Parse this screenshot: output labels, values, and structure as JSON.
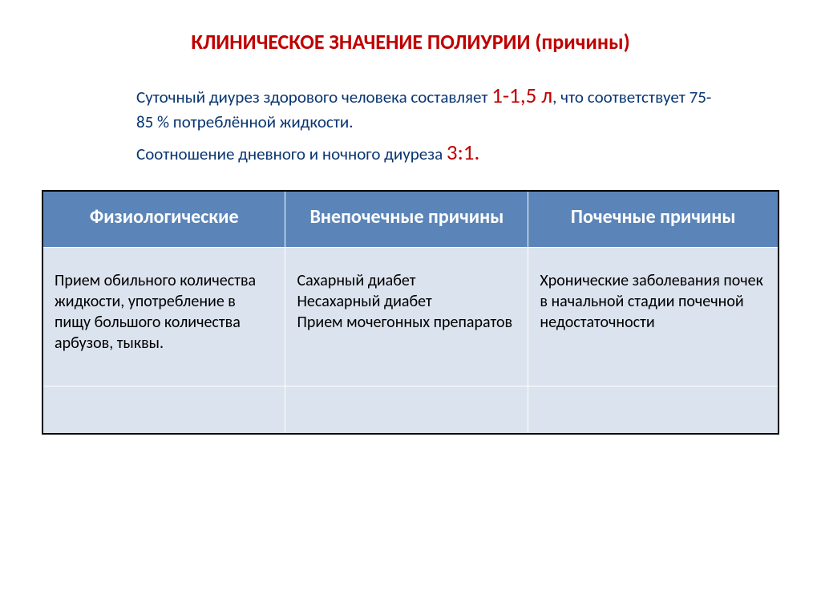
{
  "title": {
    "text": "КЛИНИЧЕСКОЕ ЗНАЧЕНИЕ ПОЛИУРИИ (причины)",
    "color": "#c00000",
    "fontsize": 26
  },
  "intro": {
    "line1_pre": "Суточный диурез здорового человека составляет ",
    "line1_highlight": "1-1,5 л",
    "line1_post": ", что   соответствует 75-85 % потреблённой жидкости.",
    "line2_pre": "Соотношение дневного и ночного диуреза ",
    "line2_highlight": "3:1.",
    "text_color": "#0a3672",
    "highlight_color": "#c00000",
    "fontsize": 21,
    "highlight_fontsize": 27
  },
  "table": {
    "header_bg": "#5b85b9",
    "header_color": "#ffffff",
    "header_fontsize": 24,
    "body_bg": "#dbe3ee",
    "body_color": "#000000",
    "body_fontsize": 20,
    "columns": [
      {
        "header": "Физиологические",
        "width": "33%"
      },
      {
        "header": "Внепочечные причины",
        "width": "33%"
      },
      {
        "header": "Почечные причины",
        "width": "34%"
      }
    ],
    "rows": [
      [
        "Прием обильного количества жидкости, употребление в пищу большого количества арбузов, тыквы.",
        "Сахарный диабет\nНесахарный диабет\nПрием мочегонных препаратов",
        "Хронические заболевания почек в начальной стадии почечной недостаточности"
      ]
    ]
  }
}
